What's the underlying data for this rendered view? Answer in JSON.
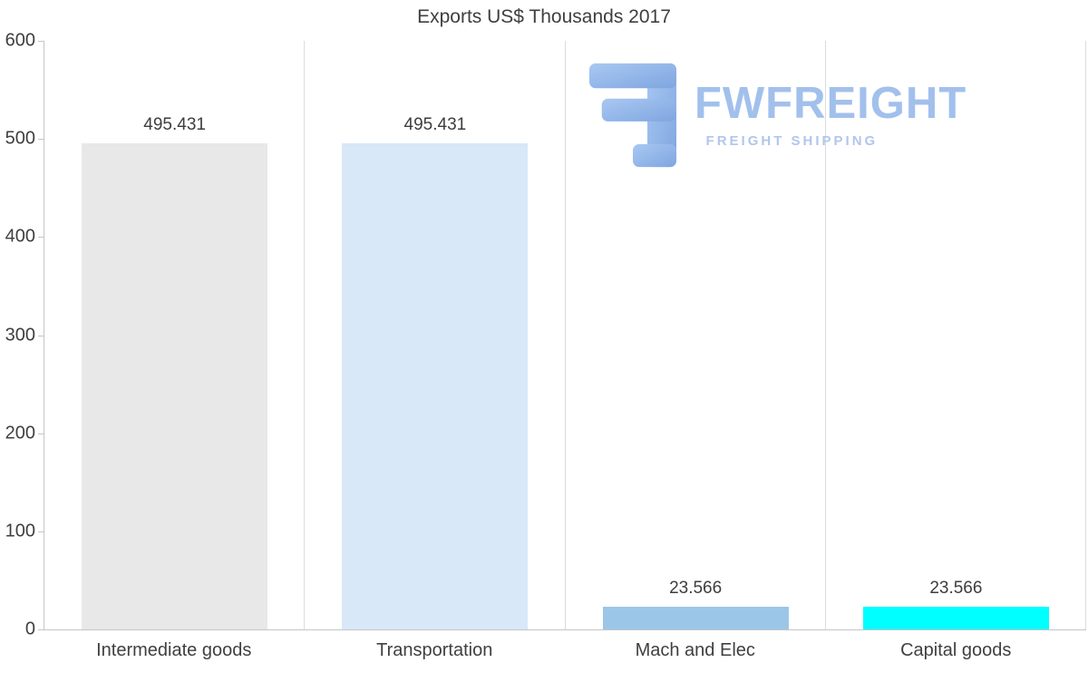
{
  "chart_data": {
    "type": "bar",
    "title": "Exports US$ Thousands 2017",
    "categories": [
      "Intermediate goods",
      "Transportation",
      "Mach and Elec",
      "Capital goods"
    ],
    "values": [
      495.431,
      495.431,
      23.566,
      23.566
    ],
    "value_labels": [
      "495.431",
      "495.431",
      "23.566",
      "23.566"
    ],
    "bar_colors": [
      "#e8e8e8",
      "#d8e8f8",
      "#9cc6e8",
      "#00ffff"
    ],
    "ylim": [
      0,
      600
    ],
    "yticks": [
      0,
      100,
      200,
      300,
      400,
      500,
      600
    ],
    "grid": "vertical-only",
    "legend": "none",
    "xlabel": "",
    "ylabel": ""
  },
  "watermark": {
    "brand": "FWFREIGHT",
    "tagline": "FREIGHT SHIPPING",
    "brand_color": "#a2c0ec"
  }
}
